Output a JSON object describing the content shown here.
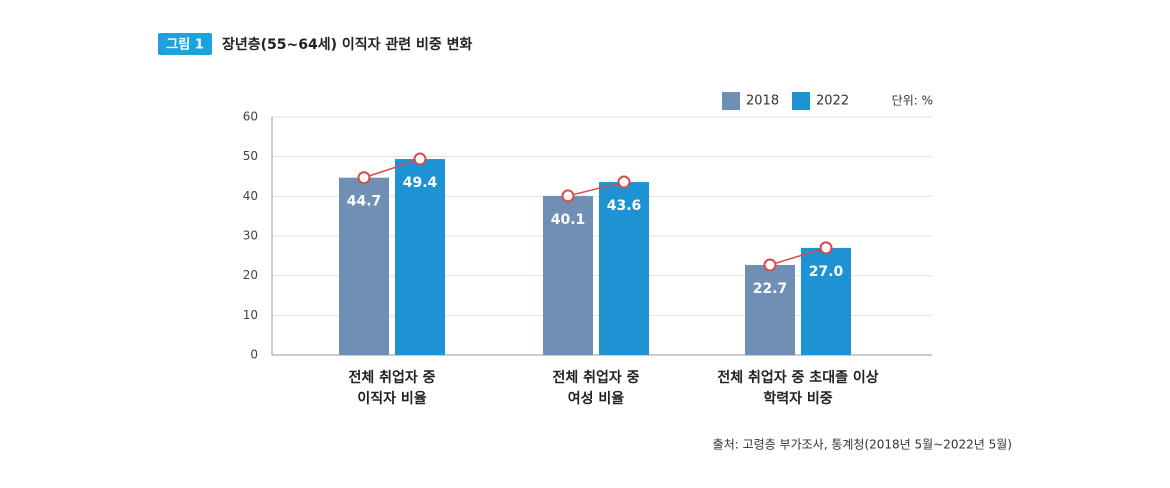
{
  "chart_data": {
    "type": "bar",
    "figure_label": "그림 1",
    "title": "장년층(55~64세) 이직자 관련 비중 변화",
    "unit_label": "단위: %",
    "source": "출처: 고령층 부가조사, 통계청(2018년 5월~2022년 5월)",
    "categories": [
      [
        "전체 취업자 중",
        "이직자 비율"
      ],
      [
        "전체 취업자 중",
        "여성 비율"
      ],
      [
        "전체 취업자 중 초대졸 이상",
        "학력자 비중"
      ]
    ],
    "series": [
      {
        "name": "2018",
        "color": "#6f8fb4",
        "values": [
          44.7,
          40.1,
          22.7
        ]
      },
      {
        "name": "2022",
        "color": "#1d93d3",
        "values": [
          49.4,
          43.6,
          27.0
        ],
        "value_labels": [
          "49.4",
          "43.6",
          "27.0"
        ]
      }
    ],
    "trend_color": "#d9484a",
    "ylim": [
      0,
      60
    ],
    "yticks": [
      0,
      10,
      20,
      30,
      40,
      50,
      60
    ],
    "grid": true,
    "legend": "top-right"
  }
}
